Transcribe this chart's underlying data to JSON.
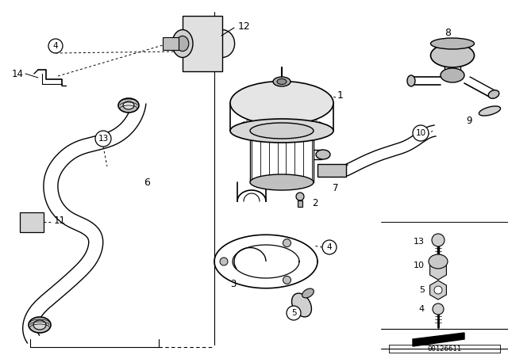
{
  "bg_color": "#ffffff",
  "line_color": "#000000",
  "diagram_id": "00126611",
  "figsize": [
    6.4,
    4.48
  ],
  "dpi": 100
}
